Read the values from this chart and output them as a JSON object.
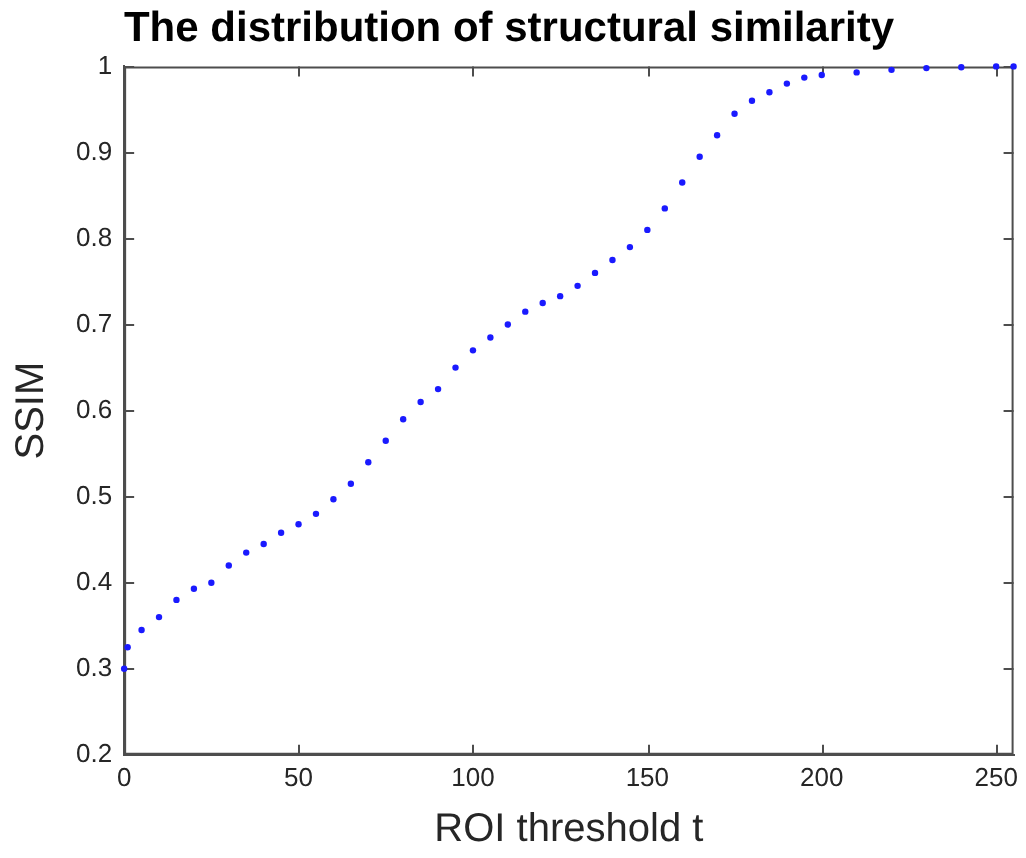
{
  "chart_data": {
    "type": "scatter",
    "title": "The distribution of structural similarity",
    "xlabel": "ROI threshold t",
    "ylabel": "SSIM",
    "x": [
      0,
      1,
      5,
      10,
      15,
      20,
      25,
      30,
      35,
      40,
      45,
      50,
      55,
      60,
      65,
      70,
      75,
      80,
      85,
      90,
      95,
      100,
      105,
      110,
      115,
      120,
      125,
      130,
      135,
      140,
      145,
      150,
      155,
      160,
      165,
      170,
      175,
      180,
      185,
      190,
      195,
      200,
      210,
      220,
      230,
      240,
      250,
      255
    ],
    "series": [
      {
        "color": "#1a1aff",
        "values": [
          0.3,
          0.325,
          0.345,
          0.36,
          0.38,
          0.393,
          0.4,
          0.42,
          0.435,
          0.445,
          0.458,
          0.468,
          0.48,
          0.497,
          0.515,
          0.54,
          0.565,
          0.59,
          0.61,
          0.625,
          0.65,
          0.67,
          0.685,
          0.7,
          0.715,
          0.725,
          0.733,
          0.745,
          0.76,
          0.775,
          0.79,
          0.81,
          0.835,
          0.865,
          0.895,
          0.92,
          0.945,
          0.96,
          0.97,
          0.98,
          0.987,
          0.99,
          0.993,
          0.996,
          0.998,
          0.999,
          1.0,
          1.0
        ]
      }
    ],
    "xlim": [
      0,
      255
    ],
    "xticks": [
      0,
      50,
      100,
      150,
      200,
      250
    ],
    "ylim": [
      0.2,
      1
    ],
    "yticks": [
      0.2,
      0.3,
      0.4,
      0.5,
      0.6,
      0.7,
      0.8,
      0.9,
      1
    ],
    "marker": "circle",
    "grid": false,
    "legend": false
  }
}
